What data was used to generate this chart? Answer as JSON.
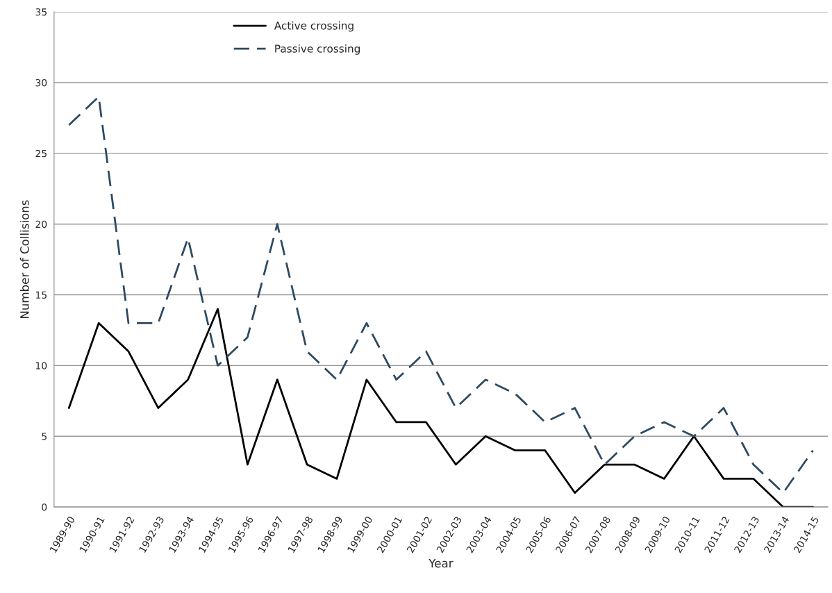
{
  "chart_data": {
    "type": "line",
    "xlabel": "Year",
    "ylabel": "Number of Collisions",
    "categories": [
      "1989-90",
      "1990-91",
      "1991-92",
      "1992-93",
      "1993-94",
      "1994-95",
      "1995-96",
      "1996-97",
      "1997-98",
      "1998-99",
      "1999-00",
      "2000-01",
      "2001-02",
      "2002-03",
      "2003-04",
      "2004-05",
      "2005-06",
      "2006-07",
      "2007-08",
      "2008-09",
      "2009-10",
      "2010-11",
      "2011-12",
      "2012-13",
      "2013-14",
      "2014-15"
    ],
    "series": [
      {
        "name": "Active crossing",
        "color": "#000000",
        "line_style": "solid",
        "values": [
          7,
          13,
          11,
          7,
          9,
          14,
          3,
          9,
          3,
          2,
          9,
          6,
          6,
          3,
          5,
          4,
          4,
          1,
          3,
          3,
          2,
          5,
          2,
          2,
          0,
          0
        ]
      },
      {
        "name": "Passive crossing",
        "color": "#2e4a62",
        "line_style": "dashed",
        "values": [
          27,
          29,
          13,
          13,
          19,
          10,
          12,
          20,
          11,
          9,
          13,
          9,
          11,
          7,
          9,
          8,
          6,
          7,
          3,
          5,
          6,
          5,
          7,
          3,
          1,
          4
        ]
      }
    ],
    "ylim": [
      0,
      35
    ],
    "yticks": [
      0,
      5,
      10,
      15,
      20,
      25,
      30,
      35
    ],
    "grid": "y",
    "legend": "top left",
    "marker": "none"
  }
}
